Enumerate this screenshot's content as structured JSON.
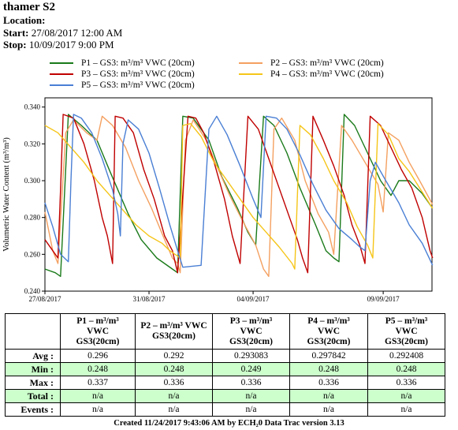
{
  "header": {
    "title": "thamer S2",
    "location_label": "Location:",
    "location_value": "",
    "start_label": "Start:",
    "start_value": "27/08/2017 12:00 AM",
    "stop_label": "Stop:",
    "stop_value": "10/09/2017 9:00 PM"
  },
  "legend": [
    {
      "text": "P1 – GS3: m³/m³ VWC (20cm)",
      "color": "#1a7a1a"
    },
    {
      "text": "P2 – GS3: m³/m³ VWC (20cm)",
      "color": "#f4a060"
    },
    {
      "text": "P3 – GS3: m³/m³ VWC (20cm)",
      "color": "#c00000"
    },
    {
      "text": "P4 – GS3: m³/m³ VWC (20cm)",
      "color": "#f5c518"
    },
    {
      "text": "P5 – GS3: m³/m³ VWC (20cm)",
      "color": "#4a7fd4"
    }
  ],
  "chart_data": {
    "type": "line",
    "ylabel": "Volumetric Water Content (m³/m³)",
    "ylim": [
      0.24,
      0.345
    ],
    "yticks": [
      "0.240",
      "0.260",
      "0.280",
      "0.300",
      "0.320",
      "0.340"
    ],
    "xlim": [
      "2017-08-27",
      "2017-09-10T21:00"
    ],
    "xticks": [
      "27/08/2017",
      "31/08/2017",
      "04/09/2017",
      "09/09/2017"
    ],
    "xtick_days": [
      0,
      4,
      8,
      13
    ],
    "grid": false,
    "series": [
      {
        "name": "P1 – GS3: m³/m³ VWC (20cm)",
        "color": "#1a7a1a",
        "points": [
          [
            0.0,
            0.252
          ],
          [
            0.4,
            0.25
          ],
          [
            0.6,
            0.248
          ],
          [
            0.9,
            0.336
          ],
          [
            1.4,
            0.33
          ],
          [
            2.0,
            0.322
          ],
          [
            2.5,
            0.305
          ],
          [
            3.2,
            0.282
          ],
          [
            3.7,
            0.268
          ],
          [
            4.3,
            0.258
          ],
          [
            4.9,
            0.252
          ],
          [
            5.1,
            0.25
          ],
          [
            5.3,
            0.335
          ],
          [
            5.7,
            0.334
          ],
          [
            6.3,
            0.322
          ],
          [
            6.8,
            0.302
          ],
          [
            7.4,
            0.285
          ],
          [
            7.8,
            0.272
          ],
          [
            8.1,
            0.265
          ],
          [
            8.4,
            0.335
          ],
          [
            8.8,
            0.33
          ],
          [
            9.3,
            0.315
          ],
          [
            9.8,
            0.296
          ],
          [
            10.4,
            0.276
          ],
          [
            10.8,
            0.262
          ],
          [
            11.1,
            0.258
          ],
          [
            11.3,
            0.256
          ],
          [
            11.5,
            0.336
          ],
          [
            11.9,
            0.33
          ],
          [
            12.4,
            0.315
          ],
          [
            12.9,
            0.3
          ],
          [
            13.3,
            0.292
          ],
          [
            13.6,
            0.3
          ],
          [
            14.0,
            0.3
          ],
          [
            14.5,
            0.293
          ],
          [
            14.9,
            0.285
          ]
        ]
      },
      {
        "name": "P2 – GS3: m³/m³ VWC (20cm)",
        "color": "#f4a060",
        "points": [
          [
            0.0,
            0.283
          ],
          [
            0.3,
            0.262
          ],
          [
            0.5,
            0.255
          ],
          [
            0.8,
            0.326
          ],
          [
            1.1,
            0.333
          ],
          [
            1.6,
            0.326
          ],
          [
            2.0,
            0.322
          ],
          [
            2.2,
            0.335
          ],
          [
            2.6,
            0.33
          ],
          [
            3.1,
            0.318
          ],
          [
            3.6,
            0.3
          ],
          [
            4.1,
            0.285
          ],
          [
            4.6,
            0.268
          ],
          [
            4.9,
            0.258
          ],
          [
            5.1,
            0.255
          ],
          [
            5.2,
            0.25
          ],
          [
            5.4,
            0.322
          ],
          [
            5.7,
            0.333
          ],
          [
            6.2,
            0.322
          ],
          [
            6.6,
            0.308
          ],
          [
            7.1,
            0.292
          ],
          [
            7.6,
            0.278
          ],
          [
            8.1,
            0.265
          ],
          [
            8.4,
            0.252
          ],
          [
            8.6,
            0.248
          ],
          [
            8.8,
            0.328
          ],
          [
            9.1,
            0.334
          ],
          [
            9.6,
            0.322
          ],
          [
            10.0,
            0.3
          ],
          [
            10.5,
            0.282
          ],
          [
            10.9,
            0.272
          ],
          [
            11.1,
            0.26
          ],
          [
            11.4,
            0.33
          ],
          [
            11.8,
            0.322
          ],
          [
            12.3,
            0.31
          ],
          [
            12.8,
            0.298
          ],
          [
            13.0,
            0.283
          ],
          [
            13.2,
            0.326
          ],
          [
            13.6,
            0.322
          ],
          [
            14.0,
            0.31
          ],
          [
            14.4,
            0.3
          ],
          [
            14.9,
            0.287
          ]
        ]
      },
      {
        "name": "P3 – GS3: m³/m³ VWC (20cm)",
        "color": "#c00000",
        "points": [
          [
            0.0,
            0.268
          ],
          [
            0.3,
            0.262
          ],
          [
            0.5,
            0.258
          ],
          [
            0.6,
            0.295
          ],
          [
            0.7,
            0.336
          ],
          [
            1.1,
            0.334
          ],
          [
            1.5,
            0.32
          ],
          [
            1.9,
            0.3
          ],
          [
            2.2,
            0.28
          ],
          [
            2.4,
            0.27
          ],
          [
            2.6,
            0.255
          ],
          [
            2.7,
            0.335
          ],
          [
            3.0,
            0.334
          ],
          [
            3.4,
            0.326
          ],
          [
            3.8,
            0.306
          ],
          [
            4.2,
            0.29
          ],
          [
            4.6,
            0.27
          ],
          [
            4.9,
            0.262
          ],
          [
            5.1,
            0.25
          ],
          [
            5.5,
            0.335
          ],
          [
            5.8,
            0.334
          ],
          [
            6.1,
            0.326
          ],
          [
            6.5,
            0.31
          ],
          [
            6.9,
            0.29
          ],
          [
            7.2,
            0.27
          ],
          [
            7.5,
            0.255
          ],
          [
            7.8,
            0.335
          ],
          [
            8.2,
            0.328
          ],
          [
            8.6,
            0.312
          ],
          [
            9.0,
            0.296
          ],
          [
            9.4,
            0.28
          ],
          [
            9.7,
            0.268
          ],
          [
            9.9,
            0.258
          ],
          [
            10.1,
            0.25
          ],
          [
            10.3,
            0.335
          ],
          [
            10.7,
            0.322
          ],
          [
            11.1,
            0.308
          ],
          [
            11.5,
            0.292
          ],
          [
            11.8,
            0.276
          ],
          [
            12.1,
            0.265
          ],
          [
            12.3,
            0.255
          ],
          [
            12.5,
            0.335
          ],
          [
            12.9,
            0.33
          ],
          [
            13.3,
            0.318
          ],
          [
            13.7,
            0.306
          ],
          [
            14.1,
            0.296
          ],
          [
            14.5,
            0.28
          ],
          [
            14.8,
            0.262
          ],
          [
            14.9,
            0.258
          ]
        ]
      },
      {
        "name": "P4 – GS3: m³/m³ VWC (20cm)",
        "color": "#f5c518",
        "points": [
          [
            0.0,
            0.33
          ],
          [
            0.5,
            0.326
          ],
          [
            1.0,
            0.318
          ],
          [
            1.5,
            0.31
          ],
          [
            2.0,
            0.3
          ],
          [
            2.5,
            0.292
          ],
          [
            3.0,
            0.284
          ],
          [
            3.5,
            0.276
          ],
          [
            4.0,
            0.27
          ],
          [
            4.5,
            0.266
          ],
          [
            4.8,
            0.262
          ],
          [
            5.0,
            0.26
          ],
          [
            5.2,
            0.258
          ],
          [
            5.3,
            0.33
          ],
          [
            5.6,
            0.331
          ],
          [
            6.0,
            0.324
          ],
          [
            6.5,
            0.31
          ],
          [
            7.0,
            0.3
          ],
          [
            7.5,
            0.29
          ],
          [
            8.0,
            0.28
          ],
          [
            8.5,
            0.272
          ],
          [
            9.0,
            0.264
          ],
          [
            9.5,
            0.255
          ],
          [
            9.6,
            0.252
          ],
          [
            9.8,
            0.33
          ],
          [
            10.2,
            0.325
          ],
          [
            10.7,
            0.312
          ],
          [
            11.1,
            0.3
          ],
          [
            11.6,
            0.288
          ],
          [
            12.0,
            0.275
          ],
          [
            12.4,
            0.265
          ],
          [
            12.6,
            0.258
          ],
          [
            12.8,
            0.331
          ],
          [
            13.2,
            0.325
          ],
          [
            13.6,
            0.312
          ],
          [
            14.0,
            0.305
          ],
          [
            14.4,
            0.296
          ],
          [
            14.9,
            0.285
          ]
        ]
      },
      {
        "name": "P5 – GS3: m³/m³ VWC (20cm)",
        "color": "#4a7fd4",
        "points": [
          [
            0.0,
            0.288
          ],
          [
            0.3,
            0.275
          ],
          [
            0.6,
            0.26
          ],
          [
            0.9,
            0.256
          ],
          [
            1.0,
            0.3
          ],
          [
            1.1,
            0.336
          ],
          [
            1.4,
            0.334
          ],
          [
            1.8,
            0.326
          ],
          [
            2.2,
            0.312
          ],
          [
            2.6,
            0.295
          ],
          [
            2.8,
            0.282
          ],
          [
            2.9,
            0.27
          ],
          [
            3.0,
            0.32
          ],
          [
            3.2,
            0.333
          ],
          [
            3.6,
            0.328
          ],
          [
            4.0,
            0.315
          ],
          [
            4.4,
            0.296
          ],
          [
            4.8,
            0.276
          ],
          [
            5.1,
            0.262
          ],
          [
            5.3,
            0.253
          ],
          [
            6.0,
            0.254
          ],
          [
            6.3,
            0.328
          ],
          [
            6.6,
            0.335
          ],
          [
            7.0,
            0.325
          ],
          [
            7.5,
            0.308
          ],
          [
            8.0,
            0.29
          ],
          [
            8.3,
            0.28
          ],
          [
            8.5,
            0.335
          ],
          [
            8.9,
            0.334
          ],
          [
            9.3,
            0.328
          ],
          [
            9.8,
            0.314
          ],
          [
            10.3,
            0.298
          ],
          [
            10.8,
            0.284
          ],
          [
            11.3,
            0.274
          ],
          [
            11.8,
            0.268
          ],
          [
            12.1,
            0.264
          ],
          [
            12.3,
            0.262
          ],
          [
            12.5,
            0.3
          ],
          [
            12.7,
            0.31
          ],
          [
            13.1,
            0.3
          ],
          [
            13.6,
            0.288
          ],
          [
            14.0,
            0.276
          ],
          [
            14.5,
            0.266
          ],
          [
            14.9,
            0.254
          ]
        ]
      }
    ]
  },
  "stats": {
    "columns": [
      [
        "P1 – m³/m³",
        "VWC",
        "GS3(20cm)"
      ],
      [
        "P2 – m³/m³ VWC",
        "GS3(20cm)"
      ],
      [
        "P3 – m³/m³",
        "VWC",
        "GS3(20cm)"
      ],
      [
        "P4 – m³/m³",
        "VWC",
        "GS3(20cm)"
      ],
      [
        "P5 – m³/m³",
        "VWC",
        "GS3(20cm)"
      ]
    ],
    "rows": [
      {
        "label": "Avg :",
        "values": [
          "0.296",
          "0.292",
          "0.293083",
          "0.297842",
          "0.292408"
        ]
      },
      {
        "label": "Min :",
        "values": [
          "0.248",
          "0.248",
          "0.249",
          "0.248",
          "0.248"
        ]
      },
      {
        "label": "Max :",
        "values": [
          "0.337",
          "0.336",
          "0.336",
          "0.336",
          "0.336"
        ]
      },
      {
        "label": "Total :",
        "values": [
          "n/a",
          "n/a",
          "n/a",
          "n/a",
          "n/a"
        ]
      },
      {
        "label": "Events :",
        "values": [
          "n/a",
          "n/a",
          "n/a",
          "n/a",
          "n/a"
        ]
      }
    ]
  },
  "footer": "Created 11/24/2017 9:43:06 AM by ECH₂0 Data Trac version 3.13"
}
